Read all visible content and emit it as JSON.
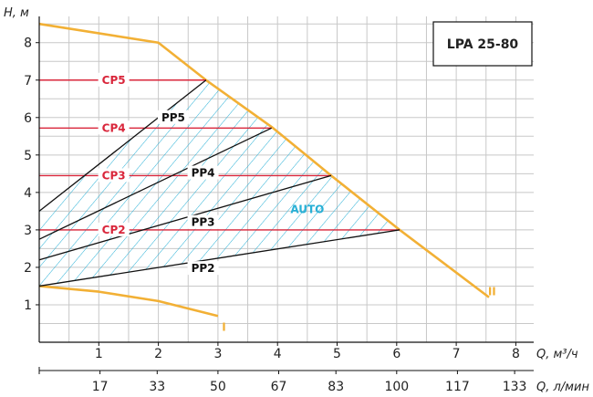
{
  "chart_data": {
    "type": "line",
    "model_box": "LPA 25-80",
    "y_axis": {
      "label": "H, м",
      "ticks": [
        1,
        2,
        3,
        4,
        5,
        6,
        7,
        8
      ],
      "range": [
        0,
        8.7
      ]
    },
    "x_axis_primary": {
      "label": "Q, м³/ч",
      "ticks": [
        1,
        2,
        3,
        4,
        5,
        6,
        7,
        8
      ],
      "range": [
        0,
        8.3
      ]
    },
    "x_axis_secondary": {
      "label": "Q, л/мин",
      "ticks": [
        "17",
        "33",
        "50",
        "67",
        "83",
        "100",
        "117",
        "133"
      ]
    },
    "grid": true,
    "accent_colors": {
      "max_curve": "#f2b035",
      "cp": "#d9263b",
      "pp": "#111111",
      "hatch": "#27b0d6",
      "auto": "#27b0d6"
    },
    "series": [
      {
        "name": "II",
        "kind": "max",
        "points": [
          [
            0,
            8.5
          ],
          [
            2,
            8.0
          ],
          [
            2.8,
            7.0
          ],
          [
            3.9,
            5.75
          ],
          [
            4.9,
            4.45
          ],
          [
            6.05,
            3.0
          ],
          [
            7.55,
            1.2
          ]
        ]
      },
      {
        "name": "I",
        "kind": "min",
        "points": [
          [
            0,
            1.5
          ],
          [
            1.0,
            1.35
          ],
          [
            2.0,
            1.1
          ],
          [
            3.0,
            0.7
          ]
        ]
      },
      {
        "name": "CP5",
        "kind": "cp",
        "points": [
          [
            0,
            7.0
          ],
          [
            2.8,
            7.0
          ]
        ]
      },
      {
        "name": "CP4",
        "kind": "cp",
        "points": [
          [
            0,
            5.72
          ],
          [
            3.9,
            5.72
          ]
        ]
      },
      {
        "name": "CP3",
        "kind": "cp",
        "points": [
          [
            0,
            4.45
          ],
          [
            4.9,
            4.45
          ]
        ]
      },
      {
        "name": "CP2",
        "kind": "cp",
        "points": [
          [
            0,
            3.0
          ],
          [
            6.05,
            3.0
          ]
        ]
      },
      {
        "name": "PP5",
        "kind": "pp",
        "points": [
          [
            0,
            3.5
          ],
          [
            2.8,
            7.0
          ]
        ]
      },
      {
        "name": "PP4",
        "kind": "pp",
        "points": [
          [
            0,
            2.75
          ],
          [
            3.9,
            5.72
          ]
        ]
      },
      {
        "name": "PP3",
        "kind": "pp",
        "points": [
          [
            0,
            2.2
          ],
          [
            4.9,
            4.45
          ]
        ]
      },
      {
        "name": "PP2",
        "kind": "pp",
        "points": [
          [
            0,
            1.5
          ],
          [
            6.05,
            3.0
          ]
        ]
      }
    ],
    "labels": {
      "cp5": "CP5",
      "cp4": "CP4",
      "cp3": "CP3",
      "cp2": "CP2",
      "pp5": "PP5",
      "pp4": "PP4",
      "pp3": "PP3",
      "pp2": "PP2",
      "auto": "AUTO",
      "curve_i": "I",
      "curve_ii": "II"
    },
    "hatched_region": "AUTO"
  }
}
